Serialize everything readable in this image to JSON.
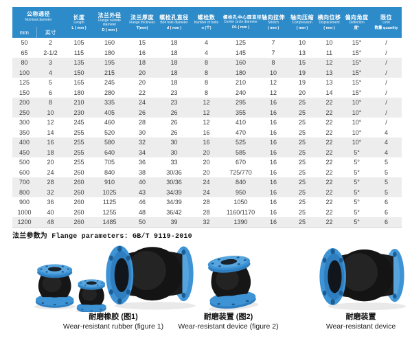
{
  "colors": {
    "header_blue": "#2E8BC9",
    "header_sub_blue": "#2478B5",
    "row_alt_gray": "#EDEDED",
    "flange_blue": "#3E93D4",
    "rubber_black": "#161616"
  },
  "table": {
    "group_header": {
      "zh": "公称通径",
      "en": "Nominal diameter",
      "sub": [
        "mm",
        "英寸"
      ]
    },
    "columns": [
      {
        "zh": "长度",
        "en": "Length",
        "sym": "L ( mm )"
      },
      {
        "zh": "法兰外径",
        "en": "Flange outside diameter",
        "sym": "D ( mm )"
      },
      {
        "zh": "法兰厚度",
        "en": "Flange thickness",
        "sym": "T(mm)"
      },
      {
        "zh": "螺栓孔直径",
        "en": "Bolt hole diameter",
        "sym": "d ( mm )"
      },
      {
        "zh": "螺栓数",
        "en": "Number of bolts",
        "sym": "n (个)"
      },
      {
        "zh": "螺栓孔中心圆直径",
        "en": "Center circle diameter",
        "sym": "D1 ( mm )"
      },
      {
        "zh": "轴向拉伸",
        "en": "Stretch",
        "sym": "( mm )"
      },
      {
        "zh": "轴向压缩",
        "en": "Compression",
        "sym": "( mm )"
      },
      {
        "zh": "横向位移",
        "en": "Displacement",
        "sym": "( mm )"
      },
      {
        "zh": "偏向角度",
        "en": "Deflection",
        "sym": "度°"
      },
      {
        "zh": "限位",
        "en": "Limit",
        "sym": "数量 quantity"
      }
    ],
    "rows": [
      [
        "50",
        "2",
        "105",
        "160",
        "15",
        "18",
        "4",
        "125",
        "7",
        "10",
        "10",
        "15°",
        "/"
      ],
      [
        "65",
        "2-1/2",
        "115",
        "180",
        "16",
        "18",
        "4",
        "145",
        "7",
        "13",
        "11",
        "15°",
        "/"
      ],
      [
        "80",
        "3",
        "135",
        "195",
        "18",
        "18",
        "8",
        "160",
        "8",
        "15",
        "12",
        "15°",
        "/"
      ],
      [
        "100",
        "4",
        "150",
        "215",
        "20",
        "18",
        "8",
        "180",
        "10",
        "19",
        "13",
        "15°",
        "/"
      ],
      [
        "125",
        "5",
        "165",
        "245",
        "20",
        "18",
        "8",
        "210",
        "12",
        "19",
        "13",
        "15°",
        "/"
      ],
      [
        "150",
        "6",
        "180",
        "280",
        "22",
        "23",
        "8",
        "240",
        "12",
        "20",
        "14",
        "15°",
        "/"
      ],
      [
        "200",
        "8",
        "210",
        "335",
        "24",
        "23",
        "12",
        "295",
        "16",
        "25",
        "22",
        "10°",
        "/"
      ],
      [
        "250",
        "10",
        "230",
        "405",
        "26",
        "26",
        "12",
        "355",
        "16",
        "25",
        "22",
        "10°",
        "/"
      ],
      [
        "300",
        "12",
        "245",
        "460",
        "28",
        "26",
        "12",
        "410",
        "16",
        "25",
        "22",
        "10°",
        "/"
      ],
      [
        "350",
        "14",
        "255",
        "520",
        "30",
        "26",
        "16",
        "470",
        "16",
        "25",
        "22",
        "10°",
        "4"
      ],
      [
        "400",
        "16",
        "255",
        "580",
        "32",
        "30",
        "16",
        "525",
        "16",
        "25",
        "22",
        "10°",
        "4"
      ],
      [
        "450",
        "18",
        "255",
        "640",
        "34",
        "30",
        "20",
        "585",
        "16",
        "25",
        "22",
        "5°",
        "4"
      ],
      [
        "500",
        "20",
        "255",
        "705",
        "36",
        "33",
        "20",
        "670",
        "16",
        "25",
        "22",
        "5°",
        "5"
      ],
      [
        "600",
        "24",
        "260",
        "840",
        "38",
        "30/36",
        "20",
        "725/770",
        "16",
        "25",
        "22",
        "5°",
        "5"
      ],
      [
        "700",
        "28",
        "260",
        "910",
        "40",
        "30/36",
        "24",
        "840",
        "16",
        "25",
        "22",
        "5°",
        "5"
      ],
      [
        "800",
        "32",
        "260",
        "1025",
        "43",
        "34/39",
        "24",
        "950",
        "16",
        "25",
        "22",
        "5°",
        "5"
      ],
      [
        "900",
        "36",
        "260",
        "1125",
        "46",
        "34/39",
        "28",
        "1050",
        "16",
        "25",
        "22",
        "5°",
        "6"
      ],
      [
        "1000",
        "40",
        "260",
        "1255",
        "48",
        "36/42",
        "28",
        "1160/1170",
        "16",
        "25",
        "22",
        "5°",
        "6"
      ],
      [
        "1200",
        "48",
        "260",
        "1485",
        "50",
        "39",
        "32",
        "1390",
        "16",
        "25",
        "22",
        "5°",
        "6"
      ]
    ]
  },
  "footnote": {
    "text": "法兰参数为 Flange parameters: GB/T 9119-2010"
  },
  "figures": [
    {
      "caption_zh": "耐磨橡胶 (图1)",
      "caption_en": "Wear-resistant rubber (figure 1)"
    },
    {
      "caption_zh": "耐磨装置 (图2)",
      "caption_en": "Wear-resistant device (figure 2)"
    },
    {
      "caption_zh": "耐磨装置",
      "caption_en": "Wear-resistant device"
    }
  ]
}
